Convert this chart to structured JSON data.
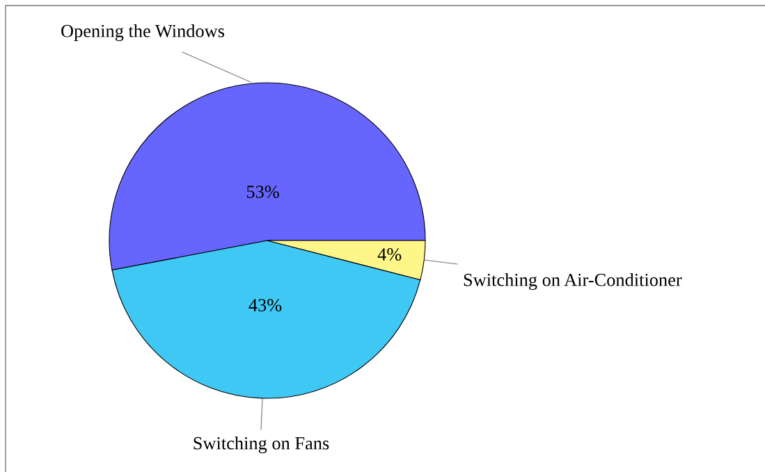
{
  "chart_data": {
    "type": "pie",
    "categories": [
      "Opening the Windows",
      "Switching on Fans",
      "Switching on Air-Conditioner"
    ],
    "values": [
      53,
      43,
      4
    ],
    "colors": [
      "#6666ff",
      "#40c8f4",
      "#fff68a"
    ],
    "value_labels": [
      "53%",
      "43%",
      "4%"
    ]
  }
}
